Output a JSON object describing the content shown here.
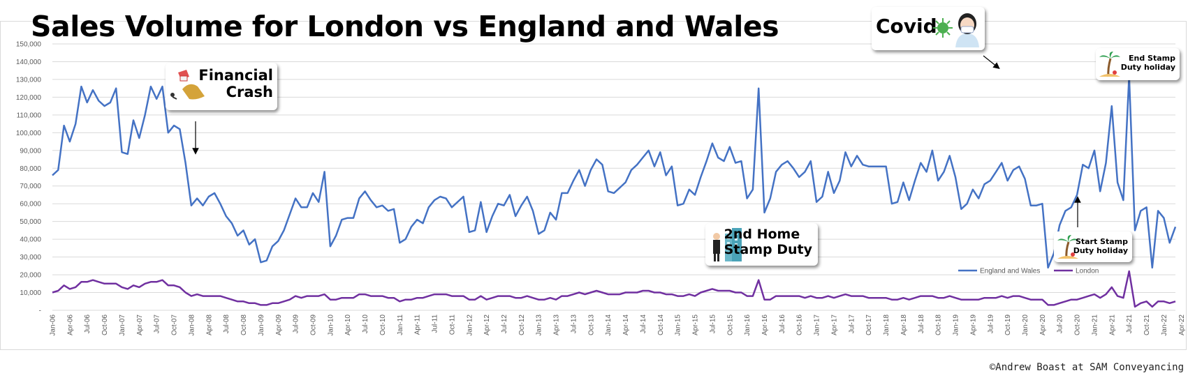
{
  "title": "Sales Volume for London vs England and Wales",
  "credit": "©Andrew Boast at SAM Conveyancing",
  "annotations": {
    "financial_crash": [
      "Financial",
      "Crash"
    ],
    "covid": "Covid",
    "second_home": [
      "2nd Home",
      "Stamp Duty"
    ],
    "start_stamp": [
      "Start Stamp",
      "Duty holiday"
    ],
    "end_stamp": [
      "End Stamp",
      "Duty holiday"
    ]
  },
  "colors": {
    "england_wales": "#4472c4",
    "london": "#7030a0",
    "grid": "#d9d9d9"
  },
  "chart_data": {
    "type": "line",
    "title": "Sales Volume for London vs England and Wales",
    "ylim": [
      0,
      150000
    ],
    "y_ticks": [
      "-",
      "10,000",
      "20,000",
      "30,000",
      "40,000",
      "50,000",
      "60,000",
      "70,000",
      "80,000",
      "90,000",
      "100,000",
      "110,000",
      "120,000",
      "130,000",
      "140,000",
      "150,000"
    ],
    "x_start": "2006-01",
    "x_tick_labels": [
      "Jan-06",
      "Apr-06",
      "Jul-06",
      "Oct-06",
      "Jan-07",
      "Apr-07",
      "Jul-07",
      "Oct-07",
      "Jan-08",
      "Apr-08",
      "Jul-08",
      "Oct-08",
      "Jan-09",
      "Apr-09",
      "Jul-09",
      "Oct-09",
      "Jan-10",
      "Apr-10",
      "Jul-10",
      "Oct-10",
      "Jan-11",
      "Apr-11",
      "Jul-11",
      "Oct-11",
      "Jan-12",
      "Apr-12",
      "Jul-12",
      "Oct-12",
      "Jan-13",
      "Apr-13",
      "Jul-13",
      "Oct-13",
      "Jan-14",
      "Apr-14",
      "Jul-14",
      "Oct-14",
      "Jan-15",
      "Apr-15",
      "Jul-15",
      "Oct-15",
      "Jan-16",
      "Apr-16",
      "Jul-16",
      "Oct-16",
      "Jan-17",
      "Apr-17",
      "Jul-17",
      "Oct-17",
      "Jan-18",
      "Apr-18",
      "Jul-18",
      "Oct-18",
      "Jan-19",
      "Apr-19",
      "Jul-19",
      "Oct-19",
      "Jan-20",
      "Apr-20",
      "Jul-20",
      "Oct-20",
      "Jan-21",
      "Apr-21",
      "Jul-21",
      "Oct-21",
      "Jan-22",
      "Apr-22"
    ],
    "grid": true,
    "legend_position": "bottom-right",
    "series": [
      {
        "name": "England and Wales",
        "values": [
          76000,
          79000,
          104000,
          95000,
          105000,
          126000,
          117000,
          124000,
          118000,
          115000,
          117000,
          125000,
          89000,
          88000,
          107000,
          97000,
          110000,
          126000,
          119000,
          126000,
          100000,
          104000,
          102000,
          83000,
          59000,
          63000,
          59000,
          64000,
          66000,
          60000,
          53000,
          49000,
          42000,
          45000,
          37000,
          40000,
          27000,
          28000,
          36000,
          39000,
          45000,
          54000,
          63000,
          58000,
          58000,
          66000,
          61000,
          78000,
          36000,
          42000,
          51000,
          52000,
          52000,
          63000,
          67000,
          62000,
          58000,
          59000,
          56000,
          57000,
          38000,
          40000,
          47000,
          51000,
          49000,
          58000,
          62000,
          64000,
          63000,
          58000,
          61000,
          64000,
          44000,
          45000,
          61000,
          44000,
          53000,
          60000,
          59000,
          65000,
          53000,
          59000,
          64000,
          56000,
          43000,
          45000,
          55000,
          51000,
          66000,
          66000,
          73000,
          79000,
          70000,
          79000,
          85000,
          82000,
          67000,
          66000,
          69000,
          72000,
          79000,
          82000,
          86000,
          90000,
          81000,
          89000,
          76000,
          81000,
          59000,
          60000,
          68000,
          65000,
          75000,
          84000,
          94000,
          86000,
          84000,
          92000,
          83000,
          84000,
          63000,
          68000,
          125000,
          55000,
          63000,
          78000,
          82000,
          84000,
          80000,
          75000,
          78000,
          84000,
          61000,
          64000,
          78000,
          66000,
          73000,
          89000,
          81000,
          87000,
          82000,
          81000,
          81000,
          81000,
          81000,
          60000,
          61000,
          72000,
          62000,
          73000,
          83000,
          78000,
          90000,
          73000,
          78000,
          87000,
          75000,
          57000,
          60000,
          68000,
          63000,
          71000,
          73000,
          78000,
          83000,
          73000,
          79000,
          81000,
          74000,
          59000,
          59000,
          60000,
          24000,
          32000,
          48000,
          56000,
          58000,
          65000,
          82000,
          80000,
          90000,
          67000,
          83000,
          115000,
          72000,
          62000,
          132000,
          45000,
          56000,
          58000,
          24000,
          56000,
          52000,
          38000,
          47000
        ]
      },
      {
        "name": "London",
        "values": [
          10000,
          11000,
          14000,
          12000,
          13000,
          16000,
          16000,
          17000,
          16000,
          15000,
          15000,
          15000,
          13000,
          12000,
          14000,
          13000,
          15000,
          16000,
          16000,
          17000,
          14000,
          14000,
          13000,
          10000,
          8000,
          9000,
          8000,
          8000,
          8000,
          8000,
          7000,
          6000,
          5000,
          5000,
          4000,
          4000,
          3000,
          3000,
          4000,
          4000,
          5000,
          6000,
          8000,
          7000,
          8000,
          8000,
          8000,
          9000,
          6000,
          6000,
          7000,
          7000,
          7000,
          9000,
          9000,
          8000,
          8000,
          8000,
          7000,
          7000,
          5000,
          6000,
          6000,
          7000,
          7000,
          8000,
          9000,
          9000,
          9000,
          8000,
          8000,
          8000,
          6000,
          6000,
          8000,
          6000,
          7000,
          8000,
          8000,
          8000,
          7000,
          7000,
          8000,
          7000,
          6000,
          6000,
          7000,
          6000,
          8000,
          8000,
          9000,
          10000,
          9000,
          10000,
          11000,
          10000,
          9000,
          9000,
          9000,
          10000,
          10000,
          10000,
          11000,
          11000,
          10000,
          10000,
          9000,
          9000,
          8000,
          8000,
          9000,
          8000,
          10000,
          11000,
          12000,
          11000,
          11000,
          11000,
          10000,
          10000,
          8000,
          8000,
          17000,
          6000,
          6000,
          8000,
          8000,
          8000,
          8000,
          8000,
          7000,
          8000,
          7000,
          7000,
          8000,
          7000,
          8000,
          9000,
          8000,
          8000,
          8000,
          7000,
          7000,
          7000,
          7000,
          6000,
          6000,
          7000,
          6000,
          7000,
          8000,
          8000,
          8000,
          7000,
          7000,
          8000,
          7000,
          6000,
          6000,
          6000,
          6000,
          7000,
          7000,
          7000,
          8000,
          7000,
          8000,
          8000,
          7000,
          6000,
          6000,
          6000,
          3000,
          3000,
          4000,
          5000,
          6000,
          6000,
          7000,
          8000,
          9000,
          7000,
          9000,
          13000,
          8000,
          7000,
          22000,
          2000,
          4000,
          5000,
          2000,
          5000,
          5000,
          4000,
          5000
        ]
      }
    ]
  }
}
